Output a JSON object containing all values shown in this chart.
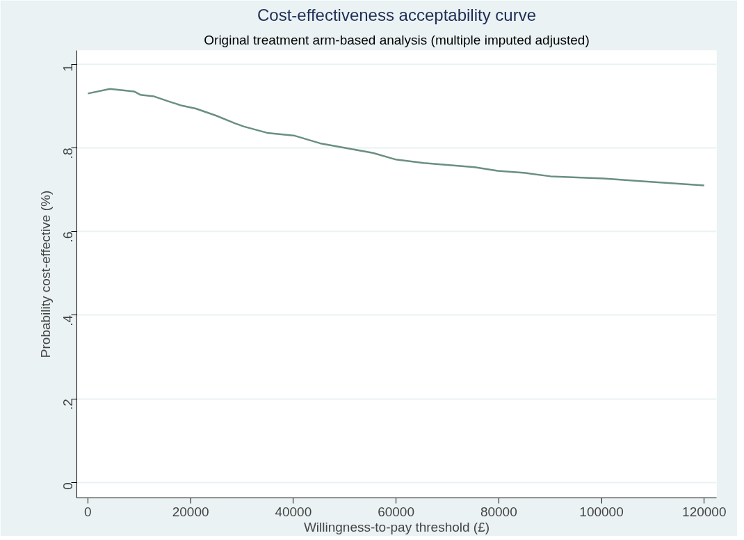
{
  "chart_data": {
    "type": "line",
    "title": "Cost-effectiveness acceptability curve",
    "subtitle": "Original treatment arm-based analysis (multiple imputed adjusted)",
    "xlabel": "Willingness-to-pay threshold (£)",
    "ylabel": "Probability cost-effective (%)",
    "x": [
      0,
      4300,
      9000,
      10200,
      12900,
      16000,
      18300,
      21000,
      25000,
      28600,
      30400,
      34900,
      40300,
      45200,
      51000,
      55500,
      60000,
      65400,
      75300,
      79800,
      85200,
      90100,
      100400,
      108000,
      120000
    ],
    "series": [
      {
        "color": "#6a8f80",
        "values": [
          0.93,
          0.941,
          0.935,
          0.927,
          0.923,
          0.91,
          0.901,
          0.894,
          0.877,
          0.859,
          0.851,
          0.836,
          0.829,
          0.811,
          0.798,
          0.788,
          0.772,
          0.764,
          0.754,
          0.745,
          0.74,
          0.732,
          0.727,
          0.72,
          0.71
        ]
      }
    ],
    "xlim": [
      -2150,
      122400
    ],
    "ylim": [
      -0.037,
      1.033
    ],
    "xticks": [
      0,
      20000,
      40000,
      60000,
      80000,
      100000,
      120000
    ],
    "yticks": [
      0,
      {
        "value": 0.2,
        "label": ".2"
      },
      {
        "value": 0.4,
        "label": ".4"
      },
      {
        "value": 0.6,
        "label": ".6"
      },
      {
        "value": 0.8,
        "label": ".8"
      },
      1
    ],
    "grid": "y",
    "marker": "none",
    "line_style": "solid"
  }
}
